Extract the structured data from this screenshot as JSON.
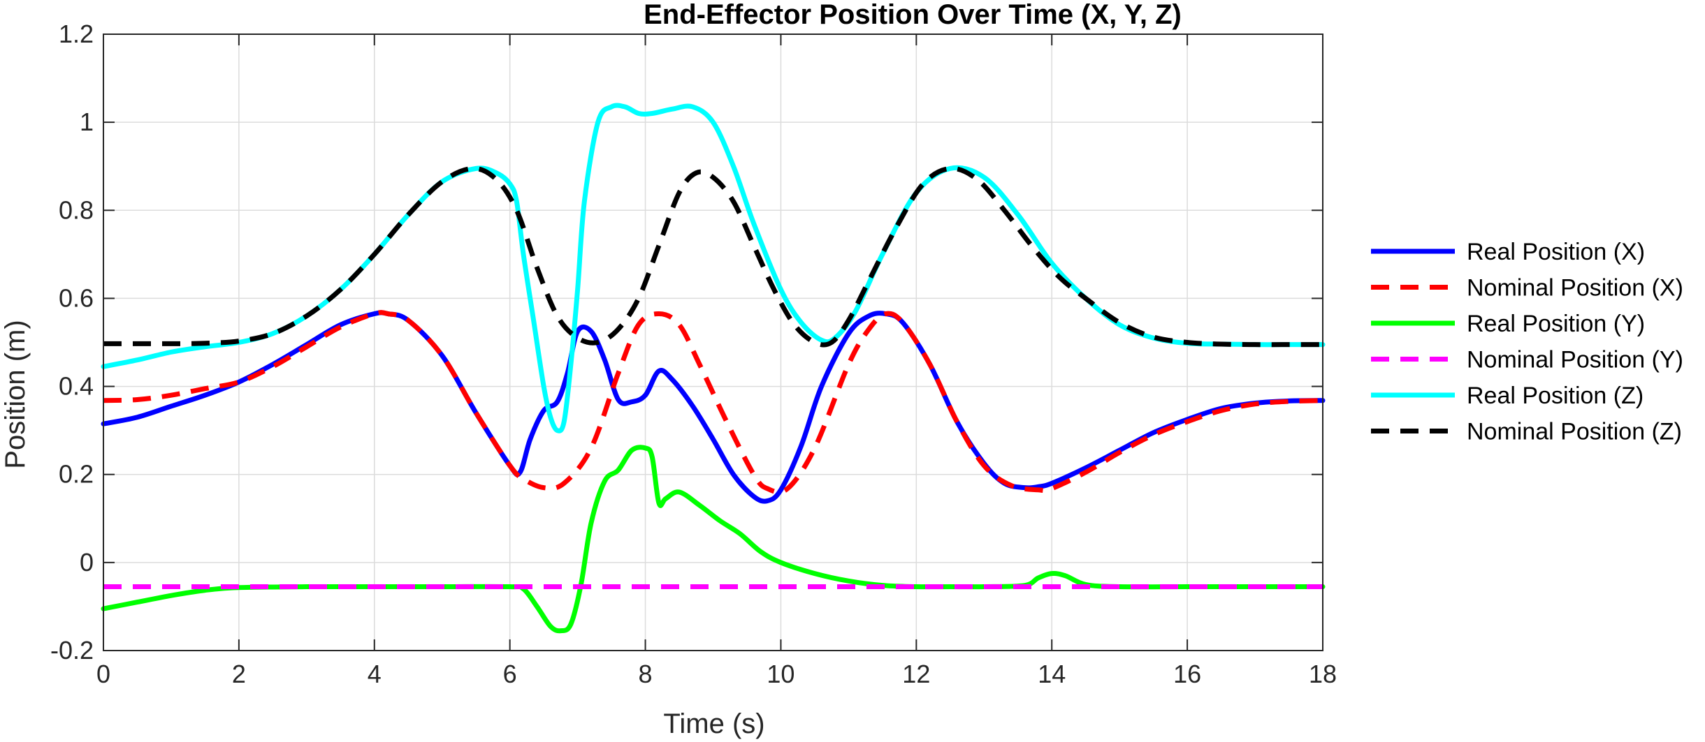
{
  "chart_data": {
    "type": "line",
    "title": "End-Effector Position Over Time (X, Y, Z)",
    "xlabel": "Time (s)",
    "ylabel": "Position (m)",
    "xlim": [
      0,
      18
    ],
    "ylim": [
      -0.2,
      1.2
    ],
    "xticks": [
      0,
      2,
      4,
      6,
      8,
      10,
      12,
      14,
      16,
      18
    ],
    "yticks": [
      -0.2,
      0,
      0.2,
      0.4,
      0.6,
      0.8,
      1,
      1.2
    ],
    "xtick_labels": [
      "0",
      "2",
      "4",
      "6",
      "8",
      "10",
      "12",
      "14",
      "16",
      "18"
    ],
    "ytick_labels": [
      "-0.2",
      "0",
      "0.2",
      "0.4",
      "0.6",
      "0.8",
      "1",
      "1.2"
    ],
    "grid": true,
    "legend_position": "outside-right",
    "series": [
      {
        "name": "Real Position (X)",
        "color": "#0000ff",
        "style": "solid",
        "x": [
          0,
          0.5,
          1,
          1.5,
          2,
          2.5,
          3,
          3.5,
          4,
          4.2,
          4.5,
          5,
          5.5,
          6,
          6.15,
          6.3,
          6.5,
          6.7,
          6.85,
          7,
          7.2,
          7.4,
          7.6,
          7.8,
          8,
          8.2,
          8.4,
          8.7,
          9,
          9.3,
          9.6,
          9.8,
          10,
          10.3,
          10.6,
          11,
          11.3,
          11.55,
          11.8,
          12.2,
          12.6,
          13,
          13.3,
          13.6,
          13.8,
          14,
          14.5,
          15,
          15.5,
          16,
          16.5,
          17,
          17.5,
          18
        ],
        "y": [
          0.315,
          0.33,
          0.355,
          0.38,
          0.41,
          0.45,
          0.495,
          0.54,
          0.565,
          0.565,
          0.55,
          0.47,
          0.34,
          0.22,
          0.205,
          0.28,
          0.345,
          0.365,
          0.43,
          0.525,
          0.525,
          0.46,
          0.37,
          0.365,
          0.38,
          0.435,
          0.415,
          0.355,
          0.28,
          0.2,
          0.15,
          0.14,
          0.165,
          0.265,
          0.4,
          0.52,
          0.56,
          0.565,
          0.545,
          0.45,
          0.32,
          0.225,
          0.18,
          0.17,
          0.172,
          0.18,
          0.215,
          0.255,
          0.295,
          0.325,
          0.35,
          0.362,
          0.367,
          0.368
        ]
      },
      {
        "name": "Nominal Position (X)",
        "color": "#ff0000",
        "style": "dashed",
        "x": [
          0,
          0.5,
          1,
          1.5,
          2,
          2.5,
          3,
          3.5,
          4,
          4.2,
          4.5,
          5,
          5.5,
          6,
          6.2,
          6.5,
          6.8,
          7.2,
          7.6,
          7.9,
          8.2,
          8.5,
          8.8,
          9.2,
          9.6,
          9.8,
          10.1,
          10.5,
          11,
          11.3,
          11.55,
          11.8,
          12.2,
          12.6,
          13,
          13.4,
          13.8,
          14,
          14.5,
          15,
          15.5,
          16,
          16.5,
          17,
          17.5,
          18
        ],
        "y": [
          0.368,
          0.37,
          0.38,
          0.395,
          0.41,
          0.445,
          0.49,
          0.535,
          0.565,
          0.565,
          0.55,
          0.47,
          0.34,
          0.22,
          0.19,
          0.17,
          0.18,
          0.26,
          0.43,
          0.54,
          0.565,
          0.54,
          0.45,
          0.32,
          0.2,
          0.168,
          0.168,
          0.26,
          0.45,
          0.53,
          0.565,
          0.545,
          0.45,
          0.32,
          0.22,
          0.175,
          0.165,
          0.168,
          0.205,
          0.25,
          0.29,
          0.32,
          0.345,
          0.36,
          0.366,
          0.368
        ]
      },
      {
        "name": "Real Position (Y)",
        "color": "#00ff00",
        "style": "solid",
        "x": [
          0,
          0.5,
          1,
          1.5,
          2,
          3,
          4,
          5,
          6,
          6.2,
          6.4,
          6.6,
          6.75,
          6.9,
          7.05,
          7.2,
          7.4,
          7.6,
          7.8,
          8.0,
          8.1,
          8.2,
          8.3,
          8.5,
          8.8,
          9.1,
          9.4,
          9.7,
          10,
          10.5,
          11,
          11.5,
          12,
          12.5,
          13,
          13.6,
          13.8,
          14,
          14.2,
          14.5,
          15,
          16,
          17,
          18
        ],
        "y": [
          -0.105,
          -0.09,
          -0.075,
          -0.063,
          -0.057,
          -0.055,
          -0.055,
          -0.055,
          -0.055,
          -0.06,
          -0.1,
          -0.145,
          -0.155,
          -0.14,
          -0.05,
          0.09,
          0.185,
          0.21,
          0.255,
          0.26,
          0.24,
          0.135,
          0.145,
          0.16,
          0.13,
          0.095,
          0.065,
          0.025,
          0.0,
          -0.025,
          -0.042,
          -0.052,
          -0.055,
          -0.055,
          -0.055,
          -0.052,
          -0.035,
          -0.025,
          -0.03,
          -0.05,
          -0.055,
          -0.055,
          -0.055,
          -0.055
        ]
      },
      {
        "name": "Nominal Position (Y)",
        "color": "#ff00ff",
        "style": "dashed",
        "x": [
          0,
          18
        ],
        "y": [
          -0.055,
          -0.055
        ]
      },
      {
        "name": "Real Position (Z)",
        "color": "#00ffff",
        "style": "solid",
        "x": [
          0,
          0.5,
          1,
          1.5,
          2,
          2.5,
          3,
          3.5,
          4,
          4.5,
          5,
          5.5,
          5.8,
          6,
          6.1,
          6.2,
          6.35,
          6.5,
          6.6,
          6.7,
          6.8,
          6.9,
          7.0,
          7.1,
          7.3,
          7.5,
          7.7,
          7.9,
          8.1,
          8.4,
          8.7,
          9.0,
          9.3,
          9.6,
          10,
          10.3,
          10.6,
          10.8,
          11.1,
          11.5,
          12,
          12.5,
          13,
          13.5,
          14,
          14.5,
          15,
          15.5,
          16,
          16.5,
          17,
          17.5,
          18
        ],
        "y": [
          0.445,
          0.46,
          0.478,
          0.49,
          0.5,
          0.52,
          0.56,
          0.62,
          0.7,
          0.79,
          0.865,
          0.895,
          0.885,
          0.86,
          0.82,
          0.7,
          0.55,
          0.4,
          0.33,
          0.3,
          0.32,
          0.45,
          0.62,
          0.82,
          1.0,
          1.035,
          1.035,
          1.02,
          1.02,
          1.03,
          1.035,
          1.0,
          0.9,
          0.77,
          0.62,
          0.545,
          0.505,
          0.51,
          0.57,
          0.7,
          0.84,
          0.895,
          0.875,
          0.79,
          0.68,
          0.6,
          0.54,
          0.51,
          0.498,
          0.496,
          0.495,
          0.495,
          0.495
        ]
      },
      {
        "name": "Nominal Position (Z)",
        "color": "#000000",
        "style": "dashed",
        "x": [
          0,
          0.5,
          1,
          1.5,
          2,
          2.5,
          3,
          3.5,
          4,
          4.5,
          5,
          5.45,
          5.8,
          6.1,
          6.4,
          6.7,
          7.0,
          7.3,
          7.6,
          7.9,
          8.2,
          8.5,
          8.75,
          9.0,
          9.3,
          9.6,
          9.9,
          10.2,
          10.5,
          10.75,
          11.0,
          11.3,
          11.7,
          12.1,
          12.5,
          12.9,
          13.3,
          13.7,
          14.1,
          14.5,
          15,
          15.5,
          16,
          16.5,
          17,
          17.5,
          18
        ],
        "y": [
          0.497,
          0.497,
          0.497,
          0.498,
          0.503,
          0.52,
          0.56,
          0.62,
          0.7,
          0.79,
          0.865,
          0.895,
          0.87,
          0.8,
          0.67,
          0.56,
          0.51,
          0.5,
          0.53,
          0.6,
          0.72,
          0.84,
          0.885,
          0.875,
          0.82,
          0.72,
          0.62,
          0.54,
          0.5,
          0.5,
          0.55,
          0.64,
          0.76,
          0.86,
          0.895,
          0.87,
          0.8,
          0.72,
          0.65,
          0.6,
          0.545,
          0.512,
          0.5,
          0.496,
          0.495,
          0.495,
          0.495
        ]
      }
    ]
  }
}
